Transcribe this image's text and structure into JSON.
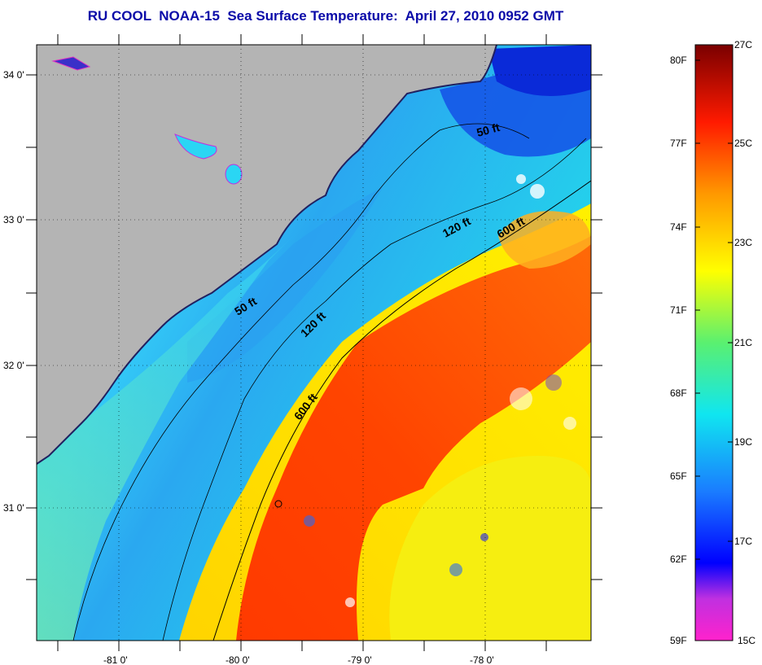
{
  "title": "RU COOL  NOAA-15  Sea Surface Temperature:  April 27, 2010 0952 GMT",
  "map": {
    "lat_ticks": [
      {
        "label": "34 0'"
      },
      {
        "label": "33 0'"
      },
      {
        "label": "32 0'"
      },
      {
        "label": "31 0'"
      }
    ],
    "lon_ticks": [
      {
        "label": "-81 0'"
      },
      {
        "label": "-80 0'"
      },
      {
        "label": "-79 0'"
      },
      {
        "label": "-78 0'"
      }
    ],
    "contour_labels": [
      {
        "text": "50 ft"
      },
      {
        "text": "50 ft"
      },
      {
        "text": "120 ft"
      },
      {
        "text": "120 ft"
      },
      {
        "text": "600 ft"
      },
      {
        "text": "600 ft"
      }
    ],
    "colors": {
      "land": "#b4b4b4",
      "cold": "#0a2ad8",
      "cool": "#1fa0ff",
      "mid": "#22e6ee",
      "warm_yellow": "#f6f200",
      "orange": "#ff7a0a",
      "red": "#f21a00"
    }
  },
  "colorbar": {
    "fahrenheit": [
      "80F",
      "77F",
      "74F",
      "71F",
      "68F",
      "65F",
      "62F",
      "59F"
    ],
    "celsius": [
      "27C",
      "25C",
      "23C",
      "21C",
      "19C",
      "17C",
      "15C"
    ]
  }
}
